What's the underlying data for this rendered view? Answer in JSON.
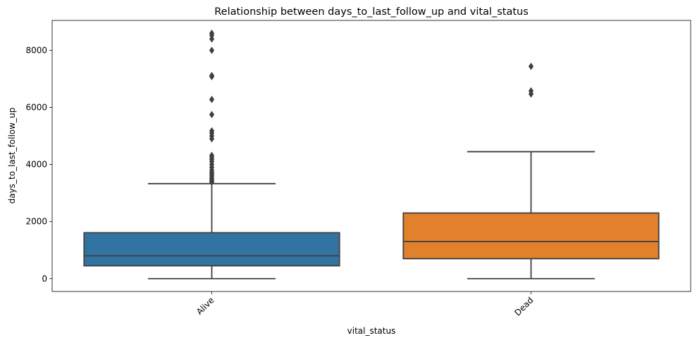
{
  "chart_data": {
    "type": "box",
    "title": "Relationship between days_to_last_follow_up and vital_status",
    "xlabel": "vital_status",
    "ylabel": "days_to_last_follow_up",
    "ylim": [
      -450,
      9050
    ],
    "yticks": [
      0,
      2000,
      4000,
      6000,
      8000
    ],
    "categories": [
      "Alive",
      "Dead"
    ],
    "grid": false,
    "boxes": [
      {
        "name": "Alive",
        "color": "#3274a1",
        "whisker_low": 0,
        "q1": 450,
        "median": 800,
        "q3": 1610,
        "whisker_high": 3330,
        "outliers": [
          3380,
          3420,
          3480,
          3530,
          3600,
          3660,
          3720,
          3800,
          3900,
          4000,
          4100,
          4180,
          4250,
          4320,
          4900,
          5000,
          5100,
          5180,
          5750,
          6280,
          7080,
          7120,
          8000,
          8400,
          8530,
          8600
        ]
      },
      {
        "name": "Dead",
        "color": "#e1812c",
        "whisker_low": 0,
        "q1": 700,
        "median": 1300,
        "q3": 2300,
        "whisker_high": 4450,
        "outliers": [
          6470,
          6580,
          7440
        ]
      }
    ]
  }
}
